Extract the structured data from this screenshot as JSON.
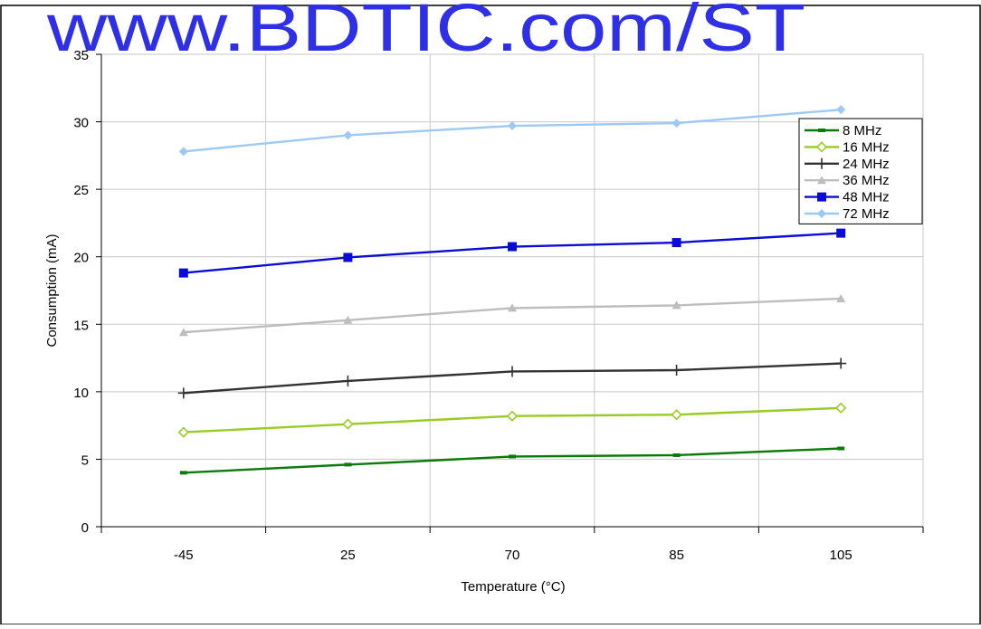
{
  "watermark": "www.BDTIC.com/ST",
  "colors": {
    "watermark": "#2f2fe6",
    "grid": "#c8c8c8",
    "axis": "#000000"
  },
  "chart_data": {
    "type": "line",
    "xlabel": "Temperature (°C)",
    "ylabel": "Consumption (mA)",
    "categories": [
      "-45",
      "25",
      "70",
      "85",
      "105"
    ],
    "ylim": [
      0,
      35
    ],
    "yticks": [
      0,
      5,
      10,
      15,
      20,
      25,
      30,
      35
    ],
    "grid": true,
    "legend_position": "top-right",
    "series": [
      {
        "name": "8 MHz",
        "color": "#0a7a0a",
        "marker": "dash",
        "values": [
          4.0,
          4.6,
          5.2,
          5.3,
          5.8
        ]
      },
      {
        "name": "16 MHz",
        "color": "#99cc22",
        "marker": "diamond-open",
        "values": [
          7.0,
          7.6,
          8.2,
          8.3,
          8.8
        ]
      },
      {
        "name": "24 MHz",
        "color": "#333333",
        "marker": "plus",
        "values": [
          9.9,
          10.8,
          11.5,
          11.6,
          12.1
        ]
      },
      {
        "name": "36 MHz",
        "color": "#bdbdbd",
        "marker": "triangle",
        "values": [
          14.4,
          15.3,
          16.2,
          16.4,
          16.9
        ]
      },
      {
        "name": "48 MHz",
        "color": "#0b0bd6",
        "marker": "square",
        "values": [
          18.8,
          19.95,
          20.75,
          21.05,
          21.75
        ]
      },
      {
        "name": "72 MHz",
        "color": "#9ec9f5",
        "marker": "diamond",
        "values": [
          27.8,
          29.0,
          29.7,
          29.9,
          30.9
        ]
      }
    ]
  }
}
